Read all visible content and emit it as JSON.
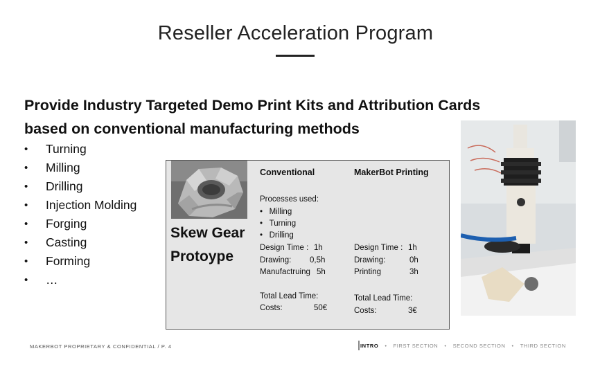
{
  "title": "Reseller Acceleration Program",
  "headline": {
    "line1": "Provide Industry Targeted Demo Print Kits and Attribution Cards",
    "line2": "based on conventional manufacturing methods"
  },
  "bullets": [
    "Turning",
    "Milling",
    "Drilling",
    "Injection Molding",
    "Forging",
    "Casting",
    "Forming",
    "…"
  ],
  "bullet_char": "•",
  "card": {
    "title_line1": "Skew Gear",
    "title_line2": "Protoype",
    "conventional": {
      "header": "Conventional",
      "processes_label": "Processes used:",
      "processes": [
        "Milling",
        "Turning",
        "Drilling"
      ],
      "design_label": "Design Time :",
      "design_value": "1h",
      "drawing_label": "Drawing:",
      "drawing_value": "0,5h",
      "manufacturing_label": "Manufactruing",
      "manufacturing_value": "5h",
      "lead_label": "Total Lead Time:",
      "costs_label": "Costs:",
      "costs_value": "50€"
    },
    "makerbot": {
      "header": "MakerBot Printing",
      "design_label": "Design Time :",
      "design_value": "1h",
      "drawing_label": "Drawing:",
      "drawing_value": "0h",
      "printing_label": "Printing",
      "printing_value": "3h",
      "lead_label": "Total  Lead  Time:",
      "costs_label": "Costs:",
      "costs_value": "3€"
    }
  },
  "footer": {
    "left": "MAKERBOT PROPRIETARY  & CONFIDENTIAL  /  P. 4",
    "nav": [
      "INTRO",
      "FIRST SECTION",
      "SECOND SECTION",
      "THIRD SECTION"
    ],
    "nav_separator": "•",
    "active_index": 0
  },
  "colors": {
    "card_background": "#e6e6e6",
    "text": "#111111",
    "footer_text": "#555555"
  }
}
